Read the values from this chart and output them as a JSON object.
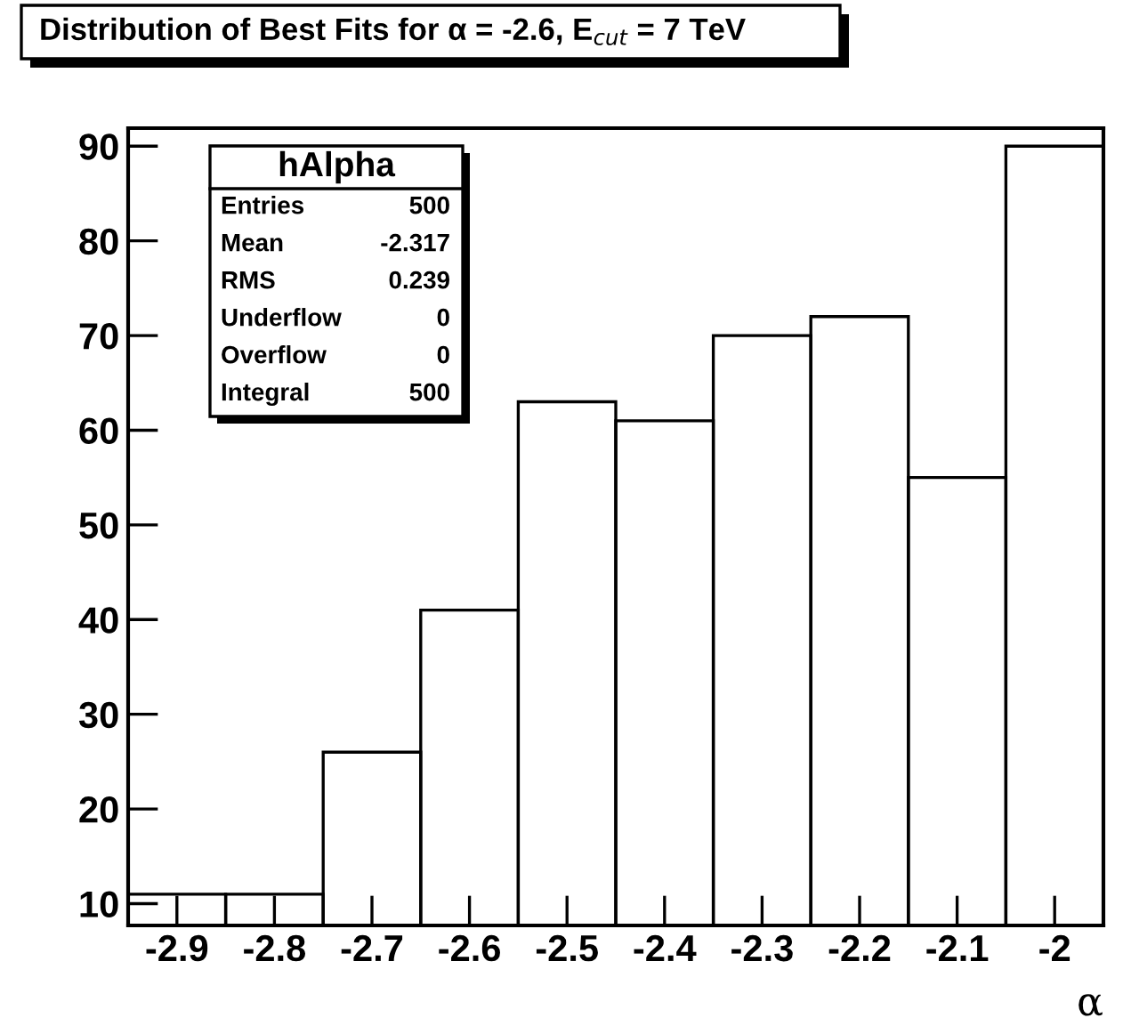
{
  "chart_data": {
    "type": "histogram",
    "title": "Distribution of Best Fits for α = -2.6, E$_{cut}$ = 7 TeV",
    "xlabel": "α",
    "bins": [
      -2.95,
      -2.85,
      -2.75,
      -2.65,
      -2.55,
      -2.45,
      -2.35,
      -2.25,
      -2.15,
      -2.05,
      -1.95
    ],
    "values": [
      11,
      11,
      26,
      41,
      63,
      61,
      70,
      72,
      55,
      90
    ],
    "color": "#000000",
    "xlim": [
      -2.95,
      -1.95
    ],
    "xticks": [
      -2.9,
      -2.8,
      -2.7,
      -2.6,
      -2.5,
      -2.4,
      -2.3,
      -2.2,
      -2.1,
      -2
    ],
    "ylim": [
      7.7,
      91.9
    ],
    "yticks": [
      10,
      20,
      30,
      40,
      50,
      60,
      70,
      80,
      90
    ],
    "grid": false,
    "legend": false,
    "annotations": [
      "hAlpha",
      "Entries",
      "500",
      "Mean",
      "-2.317",
      "RMS",
      "0.239",
      "Underflow",
      "0",
      "Overflow",
      "0",
      "Integral",
      "500"
    ]
  }
}
